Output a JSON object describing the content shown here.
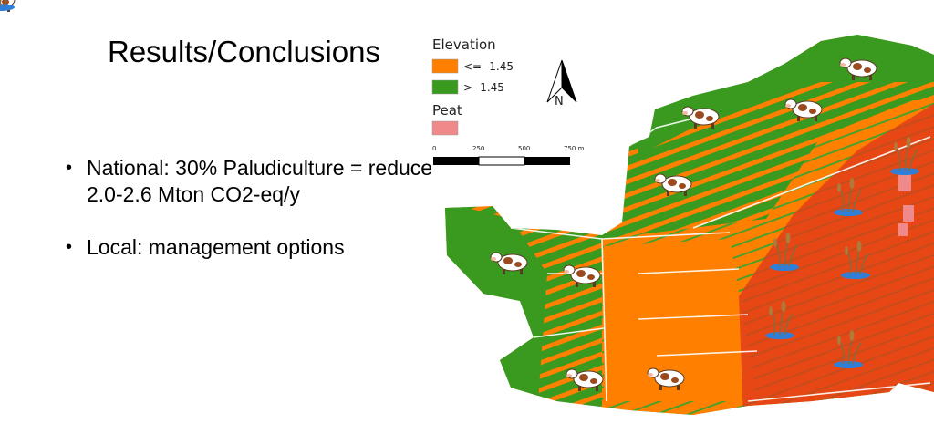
{
  "slide": {
    "title": "Results/Conclusions",
    "bullets": [
      "National: 30% Paludiculture = reduce 2.0-2.6 Mton CO2-eq/y",
      "Local: management options"
    ]
  },
  "legend": {
    "elevation_title": "Elevation",
    "elevation_low_label": "<= -1.45",
    "elevation_high_label": "> -1.45",
    "peat_title": "Peat"
  },
  "scale_bar": {
    "ticks": [
      "0",
      "250",
      "500",
      "750 m"
    ]
  },
  "north_arrow": {
    "label": "N"
  },
  "colors": {
    "low_elevation": "#ff8000",
    "high_elevation": "#3a9a1f",
    "peat": "#f08a8a",
    "peat_overlay": "#e03a1a"
  },
  "icons": {
    "cow": "cow-icon",
    "paludiculture": "reed-plant-icon"
  }
}
